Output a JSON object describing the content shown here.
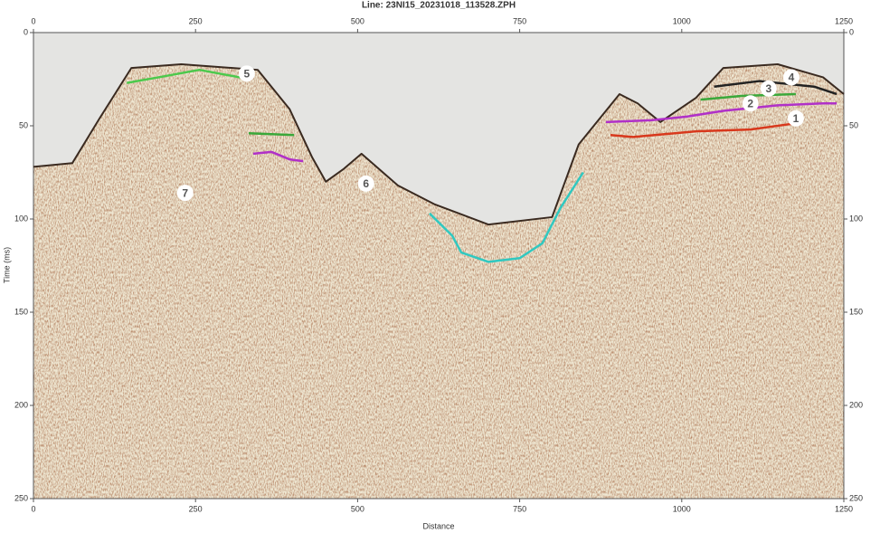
{
  "chart_data": {
    "type": "line",
    "title": "Line: 23NI15_20231018_113528.ZPH",
    "x_label": "Distance",
    "y_label": "Time (ms)",
    "xlim": [
      0,
      1250
    ],
    "xticks": [
      0,
      250,
      500,
      750,
      1000,
      1250
    ],
    "ylim": [
      0,
      250
    ],
    "yticks": [
      0,
      50,
      100,
      150,
      200,
      250
    ],
    "y_inverted": true,
    "series": [
      {
        "color": "#3a2a20",
        "x": [
          0,
          60,
          102,
          151,
          228,
          346,
          395,
          430,
          451,
          479,
          506,
          562,
          618,
          702,
          800,
          841,
          869,
          904,
          932,
          967,
          1022,
          1064,
          1148,
          1218,
          1250
        ],
        "values": [
          72,
          70,
          46,
          19,
          17,
          20,
          41,
          67,
          80,
          73,
          65,
          82,
          92,
          103,
          99,
          60,
          48,
          33,
          38,
          48,
          35,
          19,
          17,
          24,
          33
        ]
      },
      {
        "color": "#4cc94c",
        "x": [
          144,
          193,
          256,
          318,
          332
        ],
        "values": [
          27,
          24,
          20,
          24,
          22
        ]
      },
      {
        "color": "#3aa83a",
        "x": [
          332,
          402
        ],
        "values": [
          54,
          55
        ]
      },
      {
        "color": "#b030c8",
        "x": [
          339,
          367,
          395,
          416
        ],
        "values": [
          65,
          64,
          68,
          69
        ]
      },
      {
        "color": "#30c8c0",
        "x": [
          611,
          646,
          660,
          702,
          750,
          785,
          813,
          848
        ],
        "values": [
          97,
          109,
          118,
          123,
          121,
          113,
          94,
          75
        ]
      },
      {
        "color": "#b030c8",
        "x": [
          883,
          953,
          1009,
          1064,
          1148,
          1218,
          1239
        ],
        "values": [
          48,
          47,
          45,
          42,
          39,
          38,
          38
        ]
      },
      {
        "color": "#d8381c",
        "x": [
          890,
          925,
          1022,
          1106,
          1169
        ],
        "values": [
          55,
          56,
          53,
          52,
          49
        ]
      },
      {
        "color": "#3aa83a",
        "x": [
          1029,
          1092,
          1176
        ],
        "values": [
          36,
          34,
          33
        ]
      },
      {
        "color": "#222222",
        "x": [
          1050,
          1120,
          1204,
          1239
        ],
        "values": [
          29,
          26,
          29,
          33
        ]
      }
    ],
    "annotations": [
      {
        "text": "1",
        "x": 1176,
        "y": 46
      },
      {
        "text": "2",
        "x": 1106,
        "y": 38
      },
      {
        "text": "3",
        "x": 1134,
        "y": 30
      },
      {
        "text": "4",
        "x": 1169,
        "y": 24
      },
      {
        "text": "5",
        "x": 329,
        "y": 22
      },
      {
        "text": "6",
        "x": 513,
        "y": 81
      },
      {
        "text": "7",
        "x": 234,
        "y": 86
      }
    ]
  }
}
